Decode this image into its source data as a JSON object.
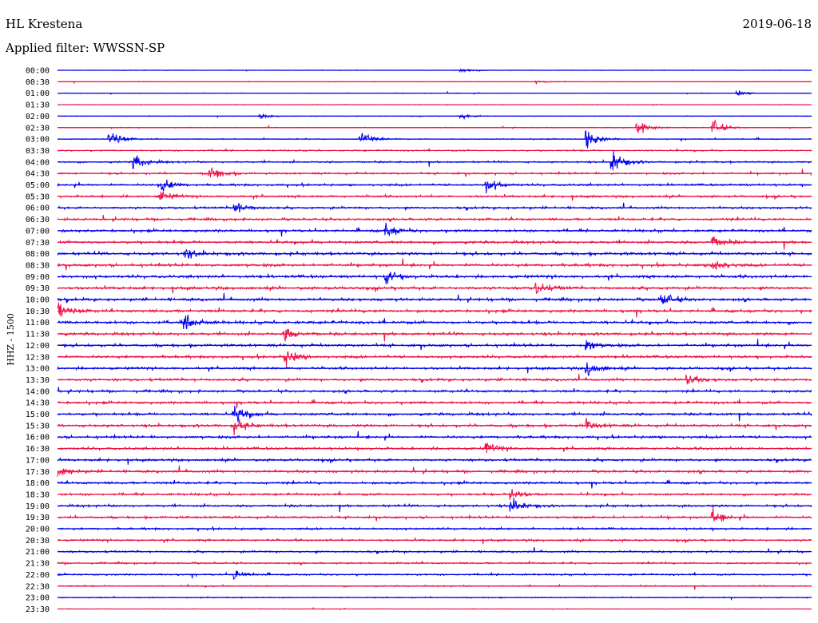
{
  "header": {
    "station": "HL Krestena",
    "date": "2019-06-18",
    "filter": "Applied filter: WWSSN-SP"
  },
  "chart_data": {
    "type": "line",
    "channel_label": "HHZ - 1500",
    "colors": {
      "even_trace": "#0000ee",
      "odd_trace": "#ee1144"
    },
    "rows": [
      {
        "time": "00:00",
        "level": 0.5
      },
      {
        "time": "00:30",
        "level": 0.5
      },
      {
        "time": "01:00",
        "level": 0.6
      },
      {
        "time": "01:30",
        "level": 0.6
      },
      {
        "time": "02:00",
        "level": 0.6
      },
      {
        "time": "02:30",
        "level": 0.8
      },
      {
        "time": "03:00",
        "level": 1.0
      },
      {
        "time": "03:30",
        "level": 1.4
      },
      {
        "time": "04:00",
        "level": 1.8
      },
      {
        "time": "04:30",
        "level": 2.0
      },
      {
        "time": "05:00",
        "level": 2.2
      },
      {
        "time": "05:30",
        "level": 2.3
      },
      {
        "time": "06:00",
        "level": 2.3
      },
      {
        "time": "06:30",
        "level": 2.5
      },
      {
        "time": "07:00",
        "level": 2.6
      },
      {
        "time": "07:30",
        "level": 2.8
      },
      {
        "time": "08:00",
        "level": 3.0
      },
      {
        "time": "08:30",
        "level": 3.0
      },
      {
        "time": "09:00",
        "level": 3.0
      },
      {
        "time": "09:30",
        "level": 2.9
      },
      {
        "time": "10:00",
        "level": 2.9
      },
      {
        "time": "10:30",
        "level": 2.9
      },
      {
        "time": "11:00",
        "level": 3.0
      },
      {
        "time": "11:30",
        "level": 2.9
      },
      {
        "time": "12:00",
        "level": 2.8
      },
      {
        "time": "12:30",
        "level": 2.7
      },
      {
        "time": "13:00",
        "level": 2.6
      },
      {
        "time": "13:30",
        "level": 2.6
      },
      {
        "time": "14:00",
        "level": 2.5
      },
      {
        "time": "14:30",
        "level": 2.6
      },
      {
        "time": "15:00",
        "level": 2.7
      },
      {
        "time": "15:30",
        "level": 2.8
      },
      {
        "time": "16:00",
        "level": 2.6
      },
      {
        "time": "16:30",
        "level": 2.6
      },
      {
        "time": "17:00",
        "level": 2.5
      },
      {
        "time": "17:30",
        "level": 2.6
      },
      {
        "time": "18:00",
        "level": 2.4
      },
      {
        "time": "18:30",
        "level": 2.3
      },
      {
        "time": "19:00",
        "level": 2.4
      },
      {
        "time": "19:30",
        "level": 2.3
      },
      {
        "time": "20:00",
        "level": 2.1
      },
      {
        "time": "20:30",
        "level": 2.1
      },
      {
        "time": "21:00",
        "level": 2.0
      },
      {
        "time": "21:30",
        "level": 1.8
      },
      {
        "time": "22:00",
        "level": 1.7
      },
      {
        "time": "22:30",
        "level": 1.4
      },
      {
        "time": "23:00",
        "level": 1.1
      },
      {
        "time": "23:30",
        "level": 0.5
      }
    ],
    "events": [
      {
        "time": "00:00",
        "minute": 16,
        "amp": 6
      },
      {
        "time": "00:30",
        "minute": 19,
        "amp": 4
      },
      {
        "time": "01:00",
        "minute": 27,
        "amp": 5
      },
      {
        "time": "02:00",
        "minute": 8,
        "amp": 5
      },
      {
        "time": "02:00",
        "minute": 16,
        "amp": 6
      },
      {
        "time": "02:30",
        "minute": 23,
        "amp": 18
      },
      {
        "time": "02:30",
        "minute": 26,
        "amp": 16
      },
      {
        "time": "03:00",
        "minute": 2,
        "amp": 22
      },
      {
        "time": "03:00",
        "minute": 12,
        "amp": 14
      },
      {
        "time": "03:00",
        "minute": 21,
        "amp": 20
      },
      {
        "time": "04:00",
        "minute": 3,
        "amp": 18
      },
      {
        "time": "04:00",
        "minute": 22,
        "amp": 26
      },
      {
        "time": "04:30",
        "minute": 6,
        "amp": 16
      },
      {
        "time": "05:00",
        "minute": 4,
        "amp": 18
      },
      {
        "time": "05:00",
        "minute": 17,
        "amp": 16
      },
      {
        "time": "05:30",
        "minute": 4,
        "amp": 12
      },
      {
        "time": "06:00",
        "minute": 7,
        "amp": 14
      },
      {
        "time": "07:00",
        "minute": 13,
        "amp": 16
      },
      {
        "time": "07:30",
        "minute": 26,
        "amp": 14
      },
      {
        "time": "08:00",
        "minute": 5,
        "amp": 12
      },
      {
        "time": "08:30",
        "minute": 26,
        "amp": 14
      },
      {
        "time": "09:00",
        "minute": 13,
        "amp": 14
      },
      {
        "time": "09:30",
        "minute": 19,
        "amp": 16
      },
      {
        "time": "10:00",
        "minute": 24,
        "amp": 14
      },
      {
        "time": "10:30",
        "minute": 0,
        "amp": 18
      },
      {
        "time": "11:00",
        "minute": 5,
        "amp": 18
      },
      {
        "time": "11:30",
        "minute": 9,
        "amp": 16
      },
      {
        "time": "12:00",
        "minute": 21,
        "amp": 12
      },
      {
        "time": "12:30",
        "minute": 9,
        "amp": 18
      },
      {
        "time": "13:00",
        "minute": 21,
        "amp": 16
      },
      {
        "time": "13:30",
        "minute": 25,
        "amp": 12
      },
      {
        "time": "15:00",
        "minute": 7,
        "amp": 18
      },
      {
        "time": "15:30",
        "minute": 7,
        "amp": 14
      },
      {
        "time": "15:30",
        "minute": 21,
        "amp": 12
      },
      {
        "time": "16:30",
        "minute": 17,
        "amp": 12
      },
      {
        "time": "17:30",
        "minute": 0,
        "amp": 12
      },
      {
        "time": "18:30",
        "minute": 18,
        "amp": 14
      },
      {
        "time": "19:00",
        "minute": 18,
        "amp": 16
      },
      {
        "time": "19:30",
        "minute": 26,
        "amp": 14
      },
      {
        "time": "22:00",
        "minute": 7,
        "amp": 10
      }
    ]
  }
}
